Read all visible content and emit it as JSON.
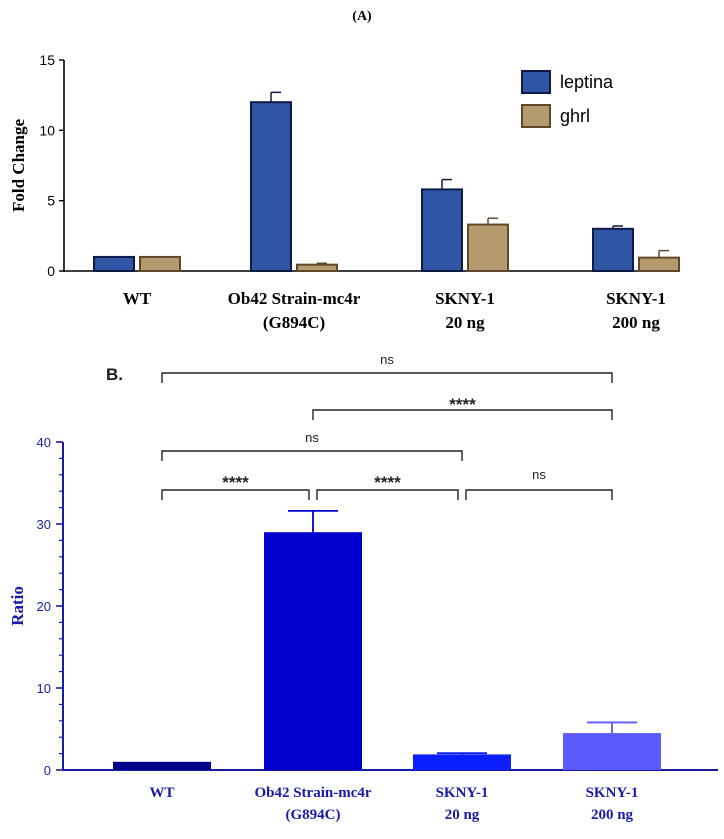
{
  "figure": {
    "panel_a_label": "(A)",
    "panel_b_label": "B."
  },
  "chart_data": [
    {
      "type": "bar",
      "panel": "A",
      "title": "",
      "xlabel": "",
      "ylabel": "Fold Change",
      "ylim": [
        0,
        15
      ],
      "yticks": [
        0,
        5,
        10,
        15
      ],
      "categories": [
        [
          "WT"
        ],
        [
          "Ob42 Strain-mc4r",
          "(G894C)"
        ],
        [
          "SKNY-1",
          "20 ng"
        ],
        [
          "SKNY-1",
          "200 ng"
        ]
      ],
      "series": [
        {
          "name": "leptina",
          "color": "#2f55a4",
          "edge": "#0d1b45",
          "values": [
            1.0,
            12.0,
            5.8,
            3.0
          ],
          "errors": [
            0,
            0.7,
            0.7,
            0.2
          ]
        },
        {
          "name": "ghrl",
          "color": "#b49a6c",
          "edge": "#5e4a2a",
          "values": [
            1.0,
            0.45,
            3.3,
            0.95
          ],
          "errors": [
            0,
            0.1,
            0.45,
            0.5
          ]
        }
      ],
      "legend": "top-right",
      "grid": false
    },
    {
      "type": "bar",
      "panel": "B",
      "title": "",
      "xlabel": "",
      "ylabel": "Ratio",
      "ylim": [
        0,
        40
      ],
      "yticks": [
        0,
        10,
        20,
        30,
        40
      ],
      "categories": [
        [
          "WT"
        ],
        [
          "Ob42 Strain-mc4r",
          "(G894C)"
        ],
        [
          "SKNY-1",
          "20 ng"
        ],
        [
          "SKNY-1",
          "200 ng"
        ]
      ],
      "values": [
        1.0,
        29.0,
        1.9,
        4.5
      ],
      "errors": [
        0,
        2.6,
        0.15,
        1.3
      ],
      "colors": [
        "#00008b",
        "#0000cd",
        "#0b1eff",
        "#5a5aff"
      ],
      "axis_color": "#1a1aa8",
      "grid": false,
      "significance": [
        {
          "from": 0,
          "to": 3,
          "label": "ns"
        },
        {
          "from": 1,
          "to": 3,
          "label": "****"
        },
        {
          "from": 0,
          "to": 2,
          "label": "ns"
        },
        {
          "from": 0,
          "to": 1,
          "label": "****"
        },
        {
          "from": 1,
          "to": 2,
          "label": "****"
        },
        {
          "from": 2,
          "to": 3,
          "label": "ns"
        }
      ]
    }
  ]
}
